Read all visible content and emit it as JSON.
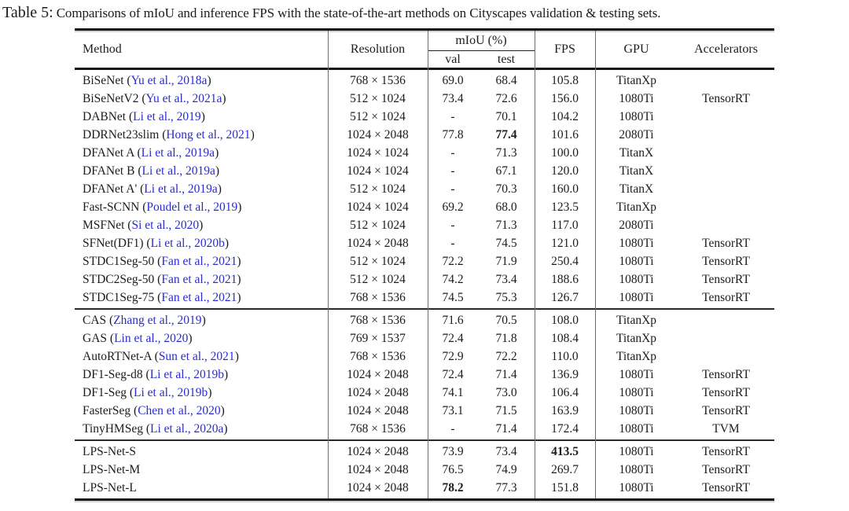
{
  "colors": {
    "citation_blue": "#2b2bd0",
    "text": "#1c1c1c",
    "rule_dark": "#151515",
    "rule_gray": "#6e6e6e"
  },
  "caption": {
    "label": "Table 5:",
    "text": "Comparisons of mIoU and inference FPS with the state-of-the-art methods on Cityscapes validation & testing sets."
  },
  "table": {
    "header": {
      "method": "Method",
      "resolution": "Resolution",
      "miou_group": "mIoU (%)",
      "val": "val",
      "test": "test",
      "fps": "FPS",
      "gpu": "GPU",
      "accelerators": "Accelerators"
    },
    "groups": [
      {
        "rows": [
          {
            "method": "BiSeNet",
            "cite": "Yu et al., 2018a",
            "res": "768 × 1536",
            "val": "69.0",
            "test": "68.4",
            "fps": "105.8",
            "gpu": "TitanXp",
            "acc": ""
          },
          {
            "method": "BiSeNetV2",
            "cite": "Yu et al., 2021a",
            "res": "512 × 1024",
            "val": "73.4",
            "test": "72.6",
            "fps": "156.0",
            "gpu": "1080Ti",
            "acc": "TensorRT"
          },
          {
            "method": "DABNet",
            "cite": "Li et al., 2019",
            "res": "512 × 1024",
            "val": "-",
            "test": "70.1",
            "fps": "104.2",
            "gpu": "1080Ti",
            "acc": ""
          },
          {
            "method": "DDRNet23slim",
            "cite": "Hong et al., 2021",
            "res": "1024 × 2048",
            "val": "77.8",
            "test": "77.4",
            "fps": "101.6",
            "gpu": "2080Ti",
            "acc": "",
            "bold": [
              "test"
            ]
          },
          {
            "method": "DFANet A",
            "cite": "Li et al., 2019a",
            "res": "1024 × 1024",
            "val": "-",
            "test": "71.3",
            "fps": "100.0",
            "gpu": "TitanX",
            "acc": ""
          },
          {
            "method": "DFANet B",
            "cite": "Li et al., 2019a",
            "res": "1024 × 1024",
            "val": "-",
            "test": "67.1",
            "fps": "120.0",
            "gpu": "TitanX",
            "acc": ""
          },
          {
            "method": "DFANet A'",
            "cite": "Li et al., 2019a",
            "res": "512 × 1024",
            "val": "-",
            "test": "70.3",
            "fps": "160.0",
            "gpu": "TitanX",
            "acc": ""
          },
          {
            "method": "Fast-SCNN",
            "cite": "Poudel et al., 2019",
            "res": "1024 × 1024",
            "val": "69.2",
            "test": "68.0",
            "fps": "123.5",
            "gpu": "TitanXp",
            "acc": ""
          },
          {
            "method": "MSFNet",
            "cite": "Si et al., 2020",
            "res": "512 × 1024",
            "val": "-",
            "test": "71.3",
            "fps": "117.0",
            "gpu": "2080Ti",
            "acc": ""
          },
          {
            "method": "SFNet(DF1)",
            "cite": "Li et al., 2020b",
            "res": "1024 × 2048",
            "val": "-",
            "test": "74.5",
            "fps": "121.0",
            "gpu": "1080Ti",
            "acc": "TensorRT"
          },
          {
            "method": "STDC1Seg-50",
            "cite": "Fan et al., 2021",
            "res": "512 × 1024",
            "val": "72.2",
            "test": "71.9",
            "fps": "250.4",
            "gpu": "1080Ti",
            "acc": "TensorRT"
          },
          {
            "method": "STDC2Seg-50",
            "cite": "Fan et al., 2021",
            "res": "512 × 1024",
            "val": "74.2",
            "test": "73.4",
            "fps": "188.6",
            "gpu": "1080Ti",
            "acc": "TensorRT"
          },
          {
            "method": "STDC1Seg-75",
            "cite": "Fan et al., 2021",
            "res": "768 × 1536",
            "val": "74.5",
            "test": "75.3",
            "fps": "126.7",
            "gpu": "1080Ti",
            "acc": "TensorRT"
          }
        ]
      },
      {
        "rows": [
          {
            "method": "CAS",
            "cite": "Zhang et al., 2019",
            "res": "768 × 1536",
            "val": "71.6",
            "test": "70.5",
            "fps": "108.0",
            "gpu": "TitanXp",
            "acc": ""
          },
          {
            "method": "GAS",
            "cite": "Lin et al., 2020",
            "res": "769 × 1537",
            "val": "72.4",
            "test": "71.8",
            "fps": "108.4",
            "gpu": "TitanXp",
            "acc": ""
          },
          {
            "method": "AutoRTNet-A",
            "cite": "Sun et al., 2021",
            "res": "768 × 1536",
            "val": "72.9",
            "test": "72.2",
            "fps": "110.0",
            "gpu": "TitanXp",
            "acc": ""
          },
          {
            "method": "DF1-Seg-d8",
            "cite": "Li et al., 2019b",
            "res": "1024 × 2048",
            "val": "72.4",
            "test": "71.4",
            "fps": "136.9",
            "gpu": "1080Ti",
            "acc": "TensorRT"
          },
          {
            "method": "DF1-Seg",
            "cite": "Li et al., 2019b",
            "res": "1024 × 2048",
            "val": "74.1",
            "test": "73.0",
            "fps": "106.4",
            "gpu": "1080Ti",
            "acc": "TensorRT"
          },
          {
            "method": "FasterSeg",
            "cite": "Chen et al., 2020",
            "res": "1024 × 2048",
            "val": "73.1",
            "test": "71.5",
            "fps": "163.9",
            "gpu": "1080Ti",
            "acc": "TensorRT"
          },
          {
            "method": "TinyHMSeg",
            "cite": "Li et al., 2020a",
            "res": "768 × 1536",
            "val": "-",
            "test": "71.4",
            "fps": "172.4",
            "gpu": "1080Ti",
            "acc": "TVM"
          }
        ]
      },
      {
        "rows": [
          {
            "method": "LPS-Net-S",
            "cite": null,
            "res": "1024 × 2048",
            "val": "73.9",
            "test": "73.4",
            "fps": "413.5",
            "gpu": "1080Ti",
            "acc": "TensorRT",
            "bold": [
              "fps"
            ]
          },
          {
            "method": "LPS-Net-M",
            "cite": null,
            "res": "1024 × 2048",
            "val": "76.5",
            "test": "74.9",
            "fps": "269.7",
            "gpu": "1080Ti",
            "acc": "TensorRT"
          },
          {
            "method": "LPS-Net-L",
            "cite": null,
            "res": "1024 × 2048",
            "val": "78.2",
            "test": "77.3",
            "fps": "151.8",
            "gpu": "1080Ti",
            "acc": "TensorRT",
            "bold": [
              "val"
            ]
          }
        ]
      }
    ]
  }
}
